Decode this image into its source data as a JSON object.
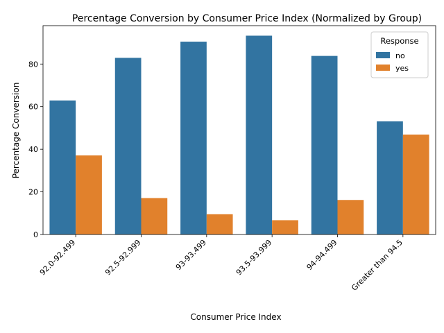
{
  "chart_data": {
    "type": "bar",
    "title": "Percentage Conversion by Consumer Price Index (Normalized by Group)",
    "xlabel": "Consumer Price Index",
    "ylabel": "Percentage Conversion",
    "categories": [
      "92.0-92.499",
      "92.5-92.999",
      "93-93.499",
      "93.5-93.999",
      "94-94.499",
      "Greater than 94.5"
    ],
    "series": [
      {
        "name": "no",
        "color": "#3274a1",
        "values": [
          62.9,
          82.9,
          90.5,
          93.3,
          83.8,
          53.1
        ]
      },
      {
        "name": "yes",
        "color": "#e1812c",
        "values": [
          37.1,
          17.1,
          9.5,
          6.7,
          16.2,
          46.9
        ]
      }
    ],
    "ylim": [
      0,
      98.0
    ],
    "yticks": [
      0,
      20,
      40,
      60,
      80
    ],
    "legend": {
      "title": "Response",
      "placement": "top-right"
    },
    "grid": false
  }
}
